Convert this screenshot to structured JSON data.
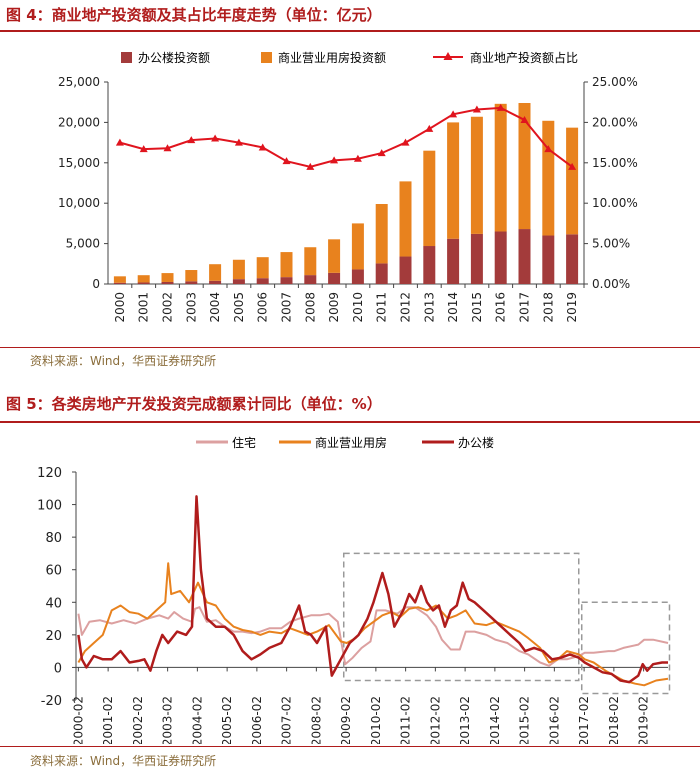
{
  "fig4": {
    "title": "图 4：商业地产投资额及其占比年度走势（单位：亿元）",
    "source": "资料来源：Wind，华西证券研究所",
    "colors": {
      "office": "#a33b3b",
      "commercial": "#e8821e",
      "share": "#e0141e",
      "axis": "#444444"
    }
  },
  "fig5": {
    "title": "图 5：各类房地产开发投资完成额累计同比（单位：%）",
    "source": "资料来源：Wind，华西证券研究所",
    "colors": {
      "residential": "#dca0a0",
      "commercial": "#e8821e",
      "office": "#b01c1c",
      "box": "#999999"
    }
  },
  "chart_data": [
    {
      "type": "bar",
      "stacked": true,
      "categories": [
        "2000",
        "2001",
        "2002",
        "2003",
        "2004",
        "2005",
        "2006",
        "2007",
        "2008",
        "2009",
        "2010",
        "2011",
        "2012",
        "2013",
        "2014",
        "2015",
        "2016",
        "2017",
        "2018",
        "2019"
      ],
      "series": [
        {
          "name": "办公楼投资额",
          "values": [
            150,
            190,
            250,
            330,
            400,
            600,
            720,
            850,
            1100,
            1380,
            1800,
            2550,
            3400,
            4700,
            5600,
            6200,
            6500,
            6800,
            6000,
            6150
          ]
        },
        {
          "name": "商业营业用房投资额",
          "values": [
            800,
            900,
            1100,
            1400,
            2050,
            2400,
            2600,
            3100,
            3450,
            4150,
            5700,
            7350,
            9300,
            11800,
            14400,
            14500,
            15800,
            15600,
            14200,
            13200
          ]
        },
        {
          "name": "商业地产投资额占比",
          "axis": "right",
          "type": "line",
          "values": [
            17.5,
            16.7,
            16.8,
            17.8,
            18.0,
            17.5,
            16.9,
            15.2,
            14.5,
            15.3,
            15.5,
            16.2,
            17.5,
            19.2,
            21.0,
            21.6,
            21.8,
            20.3,
            16.7,
            14.5
          ]
        }
      ],
      "yticks_left": [
        "0",
        "5,000",
        "10,000",
        "15,000",
        "20,000",
        "25,000"
      ],
      "yticks_right": [
        "0.00%",
        "5.00%",
        "10.00%",
        "15.00%",
        "20.00%",
        "25.00%"
      ],
      "ylim_left": [
        0,
        25000
      ],
      "ylim_right": [
        0,
        25
      ],
      "legend": [
        "办公楼投资额",
        "商业营业用房投资额",
        "商业地产投资额占比"
      ]
    },
    {
      "type": "line",
      "x_ticks": [
        "2000-02",
        "2001-02",
        "2002-02",
        "2003-02",
        "2004-02",
        "2005-02",
        "2006-02",
        "2007-02",
        "2008-02",
        "2009-02",
        "2010-02",
        "2011-02",
        "2012-02",
        "2013-02",
        "2014-02",
        "2015-02",
        "2016-02",
        "2017-02",
        "2018-02",
        "2019-02"
      ],
      "x_range": [
        2000.0,
        2019.9
      ],
      "yticks": [
        "-20",
        "0",
        "20",
        "40",
        "60",
        "80",
        "100",
        "120"
      ],
      "ylim": [
        -20,
        120
      ],
      "legend": [
        "住宅",
        "商业营业用房",
        "办公楼"
      ],
      "series": [
        {
          "name": "住宅",
          "points": [
            [
              2000.08,
              33
            ],
            [
              2000.2,
              20
            ],
            [
              2000.45,
              28
            ],
            [
              2000.8,
              29
            ],
            [
              2001.2,
              27
            ],
            [
              2001.6,
              29
            ],
            [
              2002.0,
              27
            ],
            [
              2002.4,
              30
            ],
            [
              2002.8,
              32
            ],
            [
              2003.1,
              30
            ],
            [
              2003.3,
              34
            ],
            [
              2003.6,
              30
            ],
            [
              2003.9,
              28
            ],
            [
              2004.0,
              36
            ],
            [
              2004.15,
              37
            ],
            [
              2004.4,
              28
            ],
            [
              2004.7,
              29
            ],
            [
              2005.0,
              25
            ],
            [
              2005.3,
              22
            ],
            [
              2005.6,
              22
            ],
            [
              2005.9,
              21
            ],
            [
              2006.2,
              22
            ],
            [
              2006.5,
              24
            ],
            [
              2006.9,
              24
            ],
            [
              2007.2,
              28
            ],
            [
              2007.5,
              30
            ],
            [
              2007.9,
              32
            ],
            [
              2008.2,
              32
            ],
            [
              2008.5,
              33
            ],
            [
              2008.8,
              28
            ],
            [
              2009.05,
              2
            ],
            [
              2009.3,
              6
            ],
            [
              2009.6,
              12
            ],
            [
              2009.9,
              16
            ],
            [
              2010.1,
              35
            ],
            [
              2010.4,
              35
            ],
            [
              2010.8,
              33
            ],
            [
              2011.1,
              37
            ],
            [
              2011.4,
              37
            ],
            [
              2011.8,
              32
            ],
            [
              2012.1,
              25
            ],
            [
              2012.3,
              17
            ],
            [
              2012.6,
              11
            ],
            [
              2012.9,
              11
            ],
            [
              2013.1,
              22
            ],
            [
              2013.4,
              22
            ],
            [
              2013.8,
              20
            ],
            [
              2014.1,
              17
            ],
            [
              2014.5,
              15
            ],
            [
              2014.9,
              10
            ],
            [
              2015.2,
              8
            ],
            [
              2015.6,
              3
            ],
            [
              2015.9,
              1
            ],
            [
              2016.2,
              5
            ],
            [
              2016.5,
              5
            ],
            [
              2016.9,
              7
            ],
            [
              2017.1,
              9
            ],
            [
              2017.4,
              9
            ],
            [
              2017.9,
              10
            ],
            [
              2018.1,
              10
            ],
            [
              2018.4,
              12
            ],
            [
              2018.9,
              14
            ],
            [
              2019.1,
              17
            ],
            [
              2019.4,
              17
            ],
            [
              2019.9,
              15
            ]
          ]
        },
        {
          "name": "商业营业用房",
          "points": [
            [
              2000.08,
              3
            ],
            [
              2000.3,
              10
            ],
            [
              2000.6,
              15
            ],
            [
              2000.9,
              20
            ],
            [
              2001.2,
              35
            ],
            [
              2001.5,
              38
            ],
            [
              2001.8,
              34
            ],
            [
              2002.1,
              33
            ],
            [
              2002.4,
              30
            ],
            [
              2002.7,
              35
            ],
            [
              2003.0,
              40
            ],
            [
              2003.1,
              64
            ],
            [
              2003.2,
              45
            ],
            [
              2003.5,
              47
            ],
            [
              2003.8,
              40
            ],
            [
              2004.1,
              52
            ],
            [
              2004.4,
              40
            ],
            [
              2004.7,
              38
            ],
            [
              2005.0,
              30
            ],
            [
              2005.3,
              25
            ],
            [
              2005.6,
              23
            ],
            [
              2005.9,
              22
            ],
            [
              2006.2,
              20
            ],
            [
              2006.5,
              22
            ],
            [
              2006.9,
              21
            ],
            [
              2007.2,
              24
            ],
            [
              2007.5,
              22
            ],
            [
              2007.8,
              20
            ],
            [
              2008.1,
              22
            ],
            [
              2008.5,
              26
            ],
            [
              2008.9,
              16
            ],
            [
              2009.1,
              15
            ],
            [
              2009.4,
              18
            ],
            [
              2009.7,
              24
            ],
            [
              2010.0,
              28
            ],
            [
              2010.3,
              32
            ],
            [
              2010.6,
              34
            ],
            [
              2010.9,
              31
            ],
            [
              2011.2,
              36
            ],
            [
              2011.5,
              37
            ],
            [
              2011.8,
              35
            ],
            [
              2012.1,
              38
            ],
            [
              2012.5,
              30
            ],
            [
              2012.8,
              32
            ],
            [
              2013.1,
              35
            ],
            [
              2013.4,
              27
            ],
            [
              2013.8,
              26
            ],
            [
              2014.1,
              28
            ],
            [
              2014.5,
              25
            ],
            [
              2014.9,
              22
            ],
            [
              2015.2,
              18
            ],
            [
              2015.6,
              12
            ],
            [
              2015.9,
              3
            ],
            [
              2016.2,
              5
            ],
            [
              2016.5,
              10
            ],
            [
              2016.9,
              8
            ],
            [
              2017.1,
              5
            ],
            [
              2017.4,
              3
            ],
            [
              2017.8,
              -2
            ],
            [
              2018.1,
              -5
            ],
            [
              2018.4,
              -8
            ],
            [
              2018.8,
              -10
            ],
            [
              2019.1,
              -11
            ],
            [
              2019.5,
              -8
            ],
            [
              2019.9,
              -7
            ]
          ]
        },
        {
          "name": "办公楼",
          "points": [
            [
              2000.08,
              20
            ],
            [
              2000.2,
              5
            ],
            [
              2000.35,
              0
            ],
            [
              2000.6,
              7
            ],
            [
              2000.9,
              5
            ],
            [
              2001.2,
              5
            ],
            [
              2001.5,
              10
            ],
            [
              2001.8,
              3
            ],
            [
              2002.1,
              4
            ],
            [
              2002.3,
              5
            ],
            [
              2002.5,
              -2
            ],
            [
              2002.7,
              10
            ],
            [
              2002.9,
              20
            ],
            [
              2003.1,
              15
            ],
            [
              2003.4,
              22
            ],
            [
              2003.7,
              20
            ],
            [
              2003.9,
              25
            ],
            [
              2004.05,
              105
            ],
            [
              2004.2,
              60
            ],
            [
              2004.4,
              30
            ],
            [
              2004.7,
              25
            ],
            [
              2005.0,
              25
            ],
            [
              2005.3,
              20
            ],
            [
              2005.6,
              10
            ],
            [
              2005.9,
              5
            ],
            [
              2006.2,
              8
            ],
            [
              2006.5,
              12
            ],
            [
              2006.9,
              15
            ],
            [
              2007.2,
              25
            ],
            [
              2007.5,
              38
            ],
            [
              2007.7,
              22
            ],
            [
              2007.9,
              20
            ],
            [
              2008.1,
              15
            ],
            [
              2008.4,
              25
            ],
            [
              2008.6,
              -5
            ],
            [
              2008.9,
              5
            ],
            [
              2009.2,
              15
            ],
            [
              2009.5,
              20
            ],
            [
              2009.8,
              30
            ],
            [
              2010.0,
              40
            ],
            [
              2010.3,
              58
            ],
            [
              2010.5,
              45
            ],
            [
              2010.7,
              25
            ],
            [
              2011.0,
              35
            ],
            [
              2011.2,
              45
            ],
            [
              2011.4,
              40
            ],
            [
              2011.6,
              50
            ],
            [
              2011.8,
              40
            ],
            [
              2012.0,
              35
            ],
            [
              2012.2,
              38
            ],
            [
              2012.4,
              25
            ],
            [
              2012.6,
              35
            ],
            [
              2012.8,
              38
            ],
            [
              2013.0,
              52
            ],
            [
              2013.2,
              42
            ],
            [
              2013.4,
              40
            ],
            [
              2013.7,
              35
            ],
            [
              2014.0,
              30
            ],
            [
              2014.3,
              25
            ],
            [
              2014.6,
              20
            ],
            [
              2014.9,
              15
            ],
            [
              2015.1,
              10
            ],
            [
              2015.4,
              12
            ],
            [
              2015.7,
              10
            ],
            [
              2016.0,
              5
            ],
            [
              2016.3,
              6
            ],
            [
              2016.6,
              8
            ],
            [
              2016.9,
              6
            ],
            [
              2017.1,
              3
            ],
            [
              2017.4,
              0
            ],
            [
              2017.7,
              -3
            ],
            [
              2018.0,
              -4
            ],
            [
              2018.3,
              -8
            ],
            [
              2018.6,
              -9
            ],
            [
              2018.9,
              -5
            ],
            [
              2019.05,
              2
            ],
            [
              2019.2,
              -2
            ],
            [
              2019.4,
              2
            ],
            [
              2019.7,
              3
            ],
            [
              2019.9,
              3
            ]
          ]
        }
      ],
      "highlight_boxes": [
        {
          "x_from": 2009.0,
          "x_to": 2016.9,
          "y_from": -8,
          "y_to": 70
        },
        {
          "x_from": 2017.0,
          "x_to": 2019.95,
          "y_from": -16,
          "y_to": 40
        }
      ]
    }
  ]
}
